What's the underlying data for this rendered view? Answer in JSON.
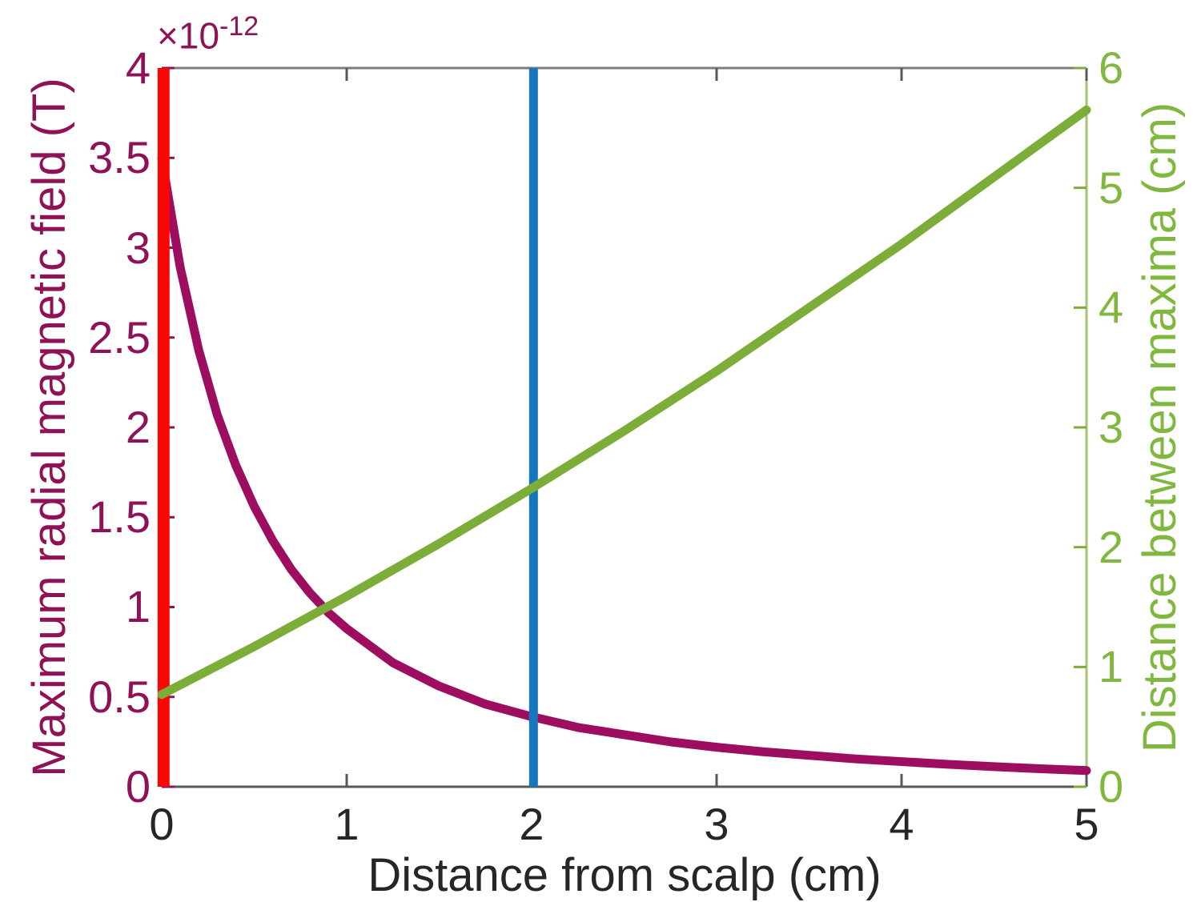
{
  "chart_data": {
    "type": "line",
    "title": "",
    "xlabel": "Distance from scalp (cm)",
    "xlim": [
      0,
      5
    ],
    "grid": false,
    "legend": "none",
    "x_ticks": [
      "0",
      "1",
      "2",
      "3",
      "4",
      "5"
    ],
    "left_axis": {
      "label": "Maximum radial magnetic field (T)",
      "multiplier_base": "×10",
      "multiplier_exp": "-12",
      "lim": [
        0,
        4
      ],
      "ticks_top_to_bottom": [
        "4",
        "3.5",
        "3",
        "2.5",
        "2",
        "1.5",
        "1",
        "0.5",
        "0"
      ],
      "text_color": "#8E1255"
    },
    "right_axis": {
      "label": "Distance between maxima (cm)",
      "lim": [
        0,
        6
      ],
      "ticks_top_to_bottom": [
        "6",
        "5",
        "4",
        "3",
        "2",
        "1",
        "0"
      ],
      "text_color": "#80B73F"
    },
    "spine_colors": {
      "top": "#7d7d7d",
      "bottom": "#595959",
      "left": "#8E1255",
      "right": "#A6C573"
    },
    "tick_colors": {
      "x": "#595959",
      "left": "#8E1255",
      "right": "#7CAD38"
    },
    "series": [
      {
        "name": "max-radial-magnetic-field",
        "axis": "left",
        "color": "#9E0E60",
        "width": 11,
        "x": [
          0,
          0.1,
          0.2,
          0.3,
          0.4,
          0.5,
          0.6,
          0.7,
          0.8,
          0.9,
          1,
          1.25,
          1.5,
          1.75,
          2,
          2.25,
          2.5,
          2.75,
          3,
          3.25,
          3.5,
          3.75,
          4,
          4.25,
          4.5,
          4.75,
          5
        ],
        "y": [
          3.5,
          2.89,
          2.43,
          2.07,
          1.79,
          1.56,
          1.37,
          1.21,
          1.08,
          0.97,
          0.88,
          0.69,
          0.56,
          0.46,
          0.39,
          0.33,
          0.29,
          0.25,
          0.22,
          0.195,
          0.175,
          0.155,
          0.14,
          0.125,
          0.112,
          0.1,
          0.09
        ]
      },
      {
        "name": "distance-between-maxima",
        "axis": "right",
        "color": "#7CAD38",
        "width": 11,
        "x": [
          0,
          0.5,
          1,
          1.5,
          2,
          2.5,
          3,
          3.5,
          4,
          4.5,
          5
        ],
        "y": [
          0.77,
          1.17,
          1.59,
          2.03,
          2.49,
          2.97,
          3.47,
          4.0,
          4.53,
          5.09,
          5.65
        ]
      }
    ],
    "vlines": [
      {
        "name": "red-vertical-line",
        "x": 0.01,
        "color": "#F90606",
        "width": 15
      },
      {
        "name": "blue-vertical-line",
        "x": 2.01,
        "color": "#1777BC",
        "width": 11
      }
    ]
  }
}
